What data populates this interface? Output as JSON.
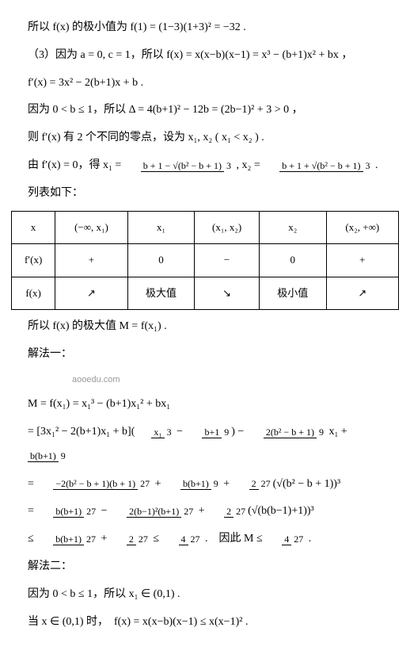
{
  "l1": "所以 f(x) 的极小值为 f(1) = (1−3)(1+3)² = −32 .",
  "l2": "（3）因为 a = 0, c = 1，所以 f(x) = x(x−b)(x−1) = x³ − (b+1)x² + bx ，",
  "l3": "f′(x) = 3x² − 2(b+1)x + b .",
  "l4": "因为 0 < b ≤ 1，所以 Δ = 4(b+1)² − 12b = (2b−1)² + 3 > 0 ，",
  "l5": "则 f′(x) 有 2 个不同的零点，设为 x₁, x₂ ( x₁ < x₂ ) .",
  "l6a": "由 f′(x) = 0，得 x₁ = ",
  "l6n1": "b + 1 − √(b² − b + 1)",
  "l6d": "3",
  "l6m": " , x₂ = ",
  "l6n2": "b + 1 + √(b² − b + 1)",
  "l6e": " .",
  "l7": "列表如下：",
  "t": {
    "r1": [
      "x",
      "(−∞, x₁)",
      "x₁",
      "(x₁, x₂)",
      "x₂",
      "(x₂, +∞)"
    ],
    "r2": [
      "f′(x)",
      "+",
      "0",
      "−",
      "0",
      "+"
    ],
    "r3": [
      "f(x)",
      "↗",
      "极大值",
      "↘",
      "极小值",
      "↗"
    ]
  },
  "l8": "所以 f(x) 的极大值 M = f(x₁) .",
  "l9": "解法一：",
  "wm": "aooedu.com",
  "l10": "M = f(x₁) = x₁³ − (b+1)x₁² + bx₁",
  "l11a": "= [3x₁² − 2(b+1)x₁ + b]",
  "l11f1n": "x₁",
  "l11f1d": "3",
  "l11m1": " − ",
  "l11f2n": "b+1",
  "l11f2d": "9",
  "l11m2": " − ",
  "l11f3n": "2(b² − b + 1)",
  "l11f3d": "9",
  "l11m3": " x₁ + ",
  "l11f4n": "b(b+1)",
  "l11f4d": "9",
  "l12a": "= ",
  "l12f1n": "−2(b² − b + 1)(b + 1)",
  "l12f1d": "27",
  "l12m1": " + ",
  "l12f2n": "b(b+1)",
  "l12f2d": "9",
  "l12m2": " + ",
  "l12f3n": "2",
  "l12f3d": "27",
  "l12e": "(√(b² − b + 1))³",
  "l13a": "= ",
  "l13f1n": "b(b+1)",
  "l13f1d": "27",
  "l13m1": " − ",
  "l13f2n": "2(b−1)²(b+1)",
  "l13f2d": "27",
  "l13m2": " + ",
  "l13f3n": "2",
  "l13f3d": "27",
  "l13e": "(√(b(b−1)+1))³",
  "l14a": "≤ ",
  "l14f1n": "b(b+1)",
  "l14f1d": "27",
  "l14m1": " + ",
  "l14f2n": "2",
  "l14f2d": "27",
  "l14m2": " ≤ ",
  "l14f3n": "4",
  "l14f3d": "27",
  "l14m3": " .　因此 M ≤ ",
  "l14f4n": "4",
  "l14f4d": "27",
  "l14e": " .",
  "l15": "解法二：",
  "l16": "因为 0 < b ≤ 1，所以 x₁ ∈ (0,1) .",
  "l17": "当 x ∈ (0,1) 时，　f(x) = x(x−b)(x−1) ≤ x(x−1)² ."
}
